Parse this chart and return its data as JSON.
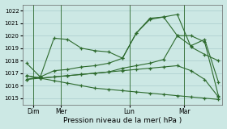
{
  "background_color": "#cce8e4",
  "grid_color": "#aacccc",
  "line_color": "#2d6a2d",
  "title": "Pression niveau de la mer( hPa )",
  "ylim": [
    1014.5,
    1022.5
  ],
  "yticks": [
    1015,
    1016,
    1017,
    1018,
    1019,
    1020,
    1021,
    1022
  ],
  "xlim": [
    -0.3,
    14.3
  ],
  "day_labels": [
    "Dim",
    "Mer",
    "Lun",
    "Mar"
  ],
  "day_positions": [
    0.5,
    2.5,
    7.5,
    11.5
  ],
  "vline_positions": [
    0.5,
    2.5,
    7.5,
    11.5
  ],
  "series": [
    {
      "x": [
        0,
        1,
        2,
        3,
        4,
        5,
        6,
        7,
        8,
        9,
        10,
        11,
        12,
        13,
        14
      ],
      "y": [
        1017.8,
        1016.7,
        1019.8,
        1019.7,
        1019.0,
        1018.8,
        1018.7,
        1018.2,
        1020.2,
        1021.3,
        1021.5,
        1021.7,
        1019.1,
        1018.5,
        1018.0
      ]
    },
    {
      "x": [
        0,
        1,
        2,
        3,
        4,
        5,
        6,
        7,
        8,
        9,
        10,
        11,
        12,
        13,
        14
      ],
      "y": [
        1016.5,
        1016.7,
        1017.2,
        1017.3,
        1017.5,
        1017.6,
        1017.8,
        1018.2,
        1020.2,
        1021.4,
        1021.5,
        1020.0,
        1019.2,
        1019.7,
        1016.3
      ]
    },
    {
      "x": [
        0,
        1,
        2,
        3,
        4,
        5,
        6,
        7,
        8,
        9,
        10,
        11,
        12,
        13,
        14
      ],
      "y": [
        1016.8,
        1016.6,
        1016.7,
        1016.8,
        1016.9,
        1017.0,
        1017.1,
        1017.4,
        1017.6,
        1017.8,
        1018.1,
        1020.0,
        1020.0,
        1019.5,
        1015.2
      ]
    },
    {
      "x": [
        0,
        1,
        2,
        3,
        4,
        5,
        6,
        7,
        8,
        9,
        10,
        11,
        12,
        13,
        14
      ],
      "y": [
        1016.5,
        1016.6,
        1016.7,
        1016.8,
        1016.9,
        1017.0,
        1017.1,
        1017.2,
        1017.3,
        1017.4,
        1017.5,
        1017.6,
        1017.2,
        1016.5,
        1015.1
      ]
    },
    {
      "x": [
        0,
        1,
        2,
        3,
        4,
        5,
        6,
        7,
        8,
        9,
        10,
        11,
        12,
        13,
        14
      ],
      "y": [
        1016.8,
        1016.6,
        1016.4,
        1016.2,
        1016.0,
        1015.8,
        1015.7,
        1015.6,
        1015.5,
        1015.4,
        1015.3,
        1015.2,
        1015.1,
        1015.0,
        1014.9
      ]
    }
  ]
}
